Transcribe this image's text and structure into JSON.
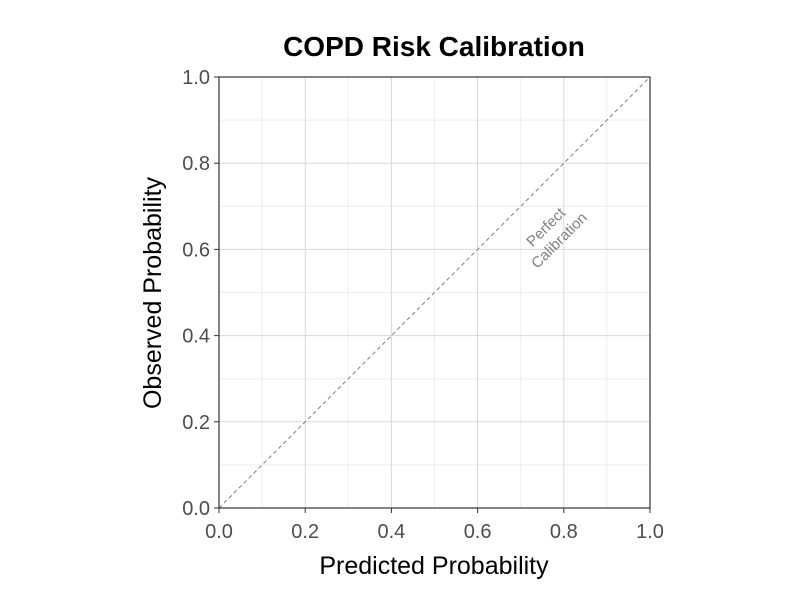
{
  "chart_data": {
    "type": "line",
    "title": "COPD Risk Calibration",
    "xlabel": "Predicted Probability",
    "ylabel": "Observed Probability",
    "xlim": [
      0,
      1
    ],
    "ylim": [
      0,
      1
    ],
    "x_ticks": [
      "0.0",
      "0.2",
      "0.4",
      "0.6",
      "0.8",
      "1.0"
    ],
    "y_ticks": [
      "0.0",
      "0.2",
      "0.4",
      "0.6",
      "0.8",
      "1.0"
    ],
    "grid": true,
    "series": [
      {
        "x": [
          0,
          1
        ],
        "y": [
          0,
          1
        ],
        "style": "dashed",
        "color": "#808080"
      }
    ],
    "annotations": [
      {
        "text_lines": [
          "Perfect",
          "Calibration"
        ],
        "x": 0.78,
        "y": 0.63,
        "color": "#808080"
      }
    ],
    "colors": {
      "panel_border": "#333333",
      "grid_major": "#d9d9d9",
      "grid_minor": "#eeeeee",
      "tick_text": "#4d4d4d"
    }
  }
}
